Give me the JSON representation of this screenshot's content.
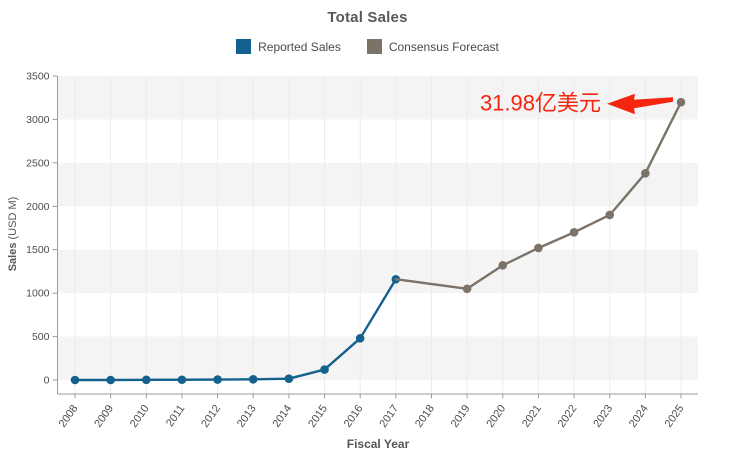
{
  "header": {
    "title": "Total Sales"
  },
  "legend": [
    {
      "label": "Reported Sales",
      "color": "#15618e"
    },
    {
      "label": "Consensus Forecast",
      "color": "#7b7268"
    }
  ],
  "axes": {
    "x_label": "Fiscal Year",
    "y_label_bold": "Sales",
    "y_label_unit": "(USD M)"
  },
  "annotation": {
    "text": "31.98亿美元",
    "color": "#f5250f"
  },
  "chart_data": {
    "type": "line",
    "title": "Total Sales",
    "xlabel": "Fiscal Year",
    "ylabel": "Sales (USD M)",
    "ylim": [
      0,
      3500
    ],
    "y_ticks": [
      0,
      500,
      1000,
      1500,
      2000,
      2500,
      3000,
      3500
    ],
    "x_ticks": [
      2008,
      2009,
      2010,
      2011,
      2012,
      2013,
      2014,
      2015,
      2016,
      2017,
      2018,
      2019,
      2020,
      2021,
      2022,
      2023,
      2024,
      2025
    ],
    "grid": "vertical-lines-and-horizontal-bands",
    "band_colors": [
      "#f4f4f4",
      "#ffffff"
    ],
    "legend_position": "top",
    "series": [
      {
        "name": "Reported Sales",
        "color": "#15618e",
        "x": [
          2008,
          2009,
          2010,
          2011,
          2012,
          2013,
          2014,
          2015,
          2016,
          2017
        ],
        "values": [
          0,
          0,
          2,
          3,
          5,
          8,
          15,
          120,
          480,
          1160
        ]
      },
      {
        "name": "Consensus Forecast",
        "color": "#7b7268",
        "x": [
          2017,
          2019,
          2020,
          2021,
          2022,
          2023,
          2024,
          2025
        ],
        "values": [
          1160,
          1050,
          1320,
          1520,
          1700,
          1900,
          2380,
          3198
        ],
        "marker_start_index": 1
      }
    ],
    "annotation": {
      "text": "31.98亿美元",
      "color": "#f5250f",
      "target_x": 2025,
      "target_y": 3198,
      "arrow_direction": "pointing-left-from-data-point-to-text"
    }
  }
}
